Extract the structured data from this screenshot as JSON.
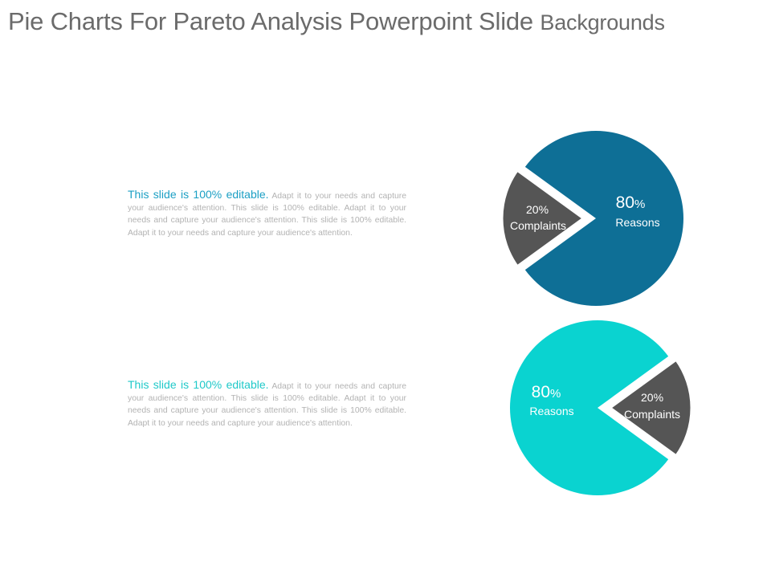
{
  "title": {
    "main": "Pie Charts For Pareto Analysis Powerpoint Slide",
    "small": "Backgrounds"
  },
  "blocks": [
    {
      "lead": "This slide is 100% editable.",
      "body": "Adapt it to your needs and capture your audience's attention. This slide is 100% editable. Adapt it to your needs and capture your audience's attention. This slide is 100% editable. Adapt it to your needs and capture your audience's attention.",
      "lead_color": "#1b9fc4"
    },
    {
      "lead": "This slide is 100% editable.",
      "body": "Adapt it to your needs and capture your audience's attention. This slide is 100% editable. Adapt it to your needs and capture your audience's attention. This slide is 100% editable. Adapt it to your needs and capture your audience's attention.",
      "lead_color": "#1fc9c9"
    }
  ],
  "chart_data": [
    {
      "type": "pie",
      "slices": [
        {
          "value": 80,
          "sign": "%",
          "label": "Reasons",
          "color": "#0e6f96",
          "exploded": false
        },
        {
          "value": 20,
          "sign": "%",
          "label": "Complaints",
          "color": "#555555",
          "exploded": true
        }
      ]
    },
    {
      "type": "pie",
      "slices": [
        {
          "value": 80,
          "sign": "%",
          "label": "Reasons",
          "color": "#0ad3d0",
          "exploded": false
        },
        {
          "value": 20,
          "sign": "%",
          "label": "Complaints",
          "color": "#555555",
          "exploded": true
        }
      ]
    }
  ]
}
